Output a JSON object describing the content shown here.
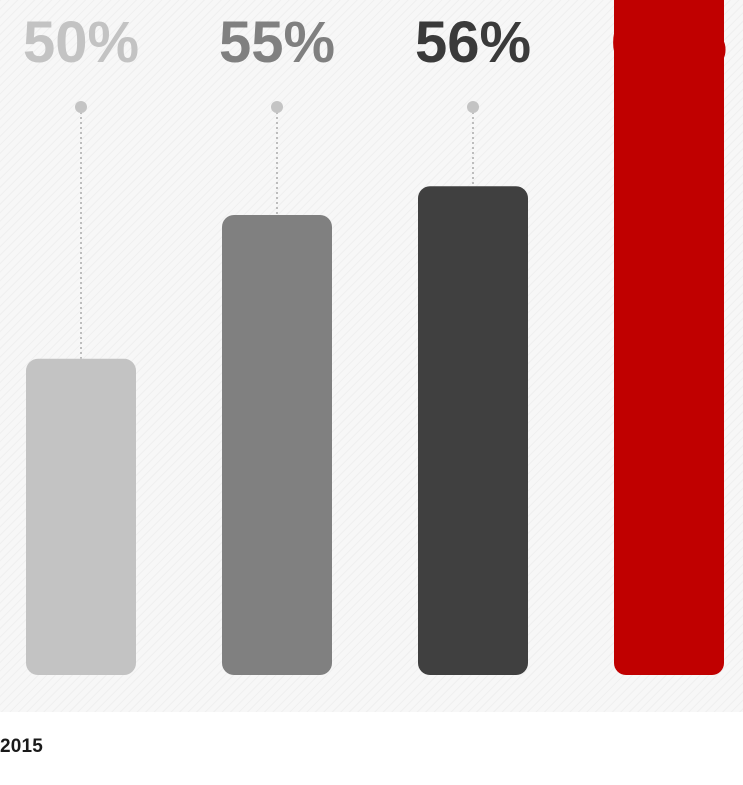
{
  "chart_data": {
    "type": "bar",
    "categories": [
      "",
      "",
      "",
      ""
    ],
    "values": [
      50,
      55,
      56,
      67
    ],
    "data_labels": [
      "50%",
      "55%",
      "56%",
      "67%"
    ],
    "colors": [
      "#c3c3c3",
      "#808080",
      "#404040",
      "#c00000"
    ],
    "label_colors": [
      "#c3c3c3",
      "#808080",
      "#3a3a3a",
      "#c00000"
    ],
    "title": "",
    "xlabel": "",
    "ylabel": "",
    "ylim": [
      0,
      70
    ],
    "grid": false,
    "legend": "none"
  },
  "footer": {
    "text": "2015"
  }
}
